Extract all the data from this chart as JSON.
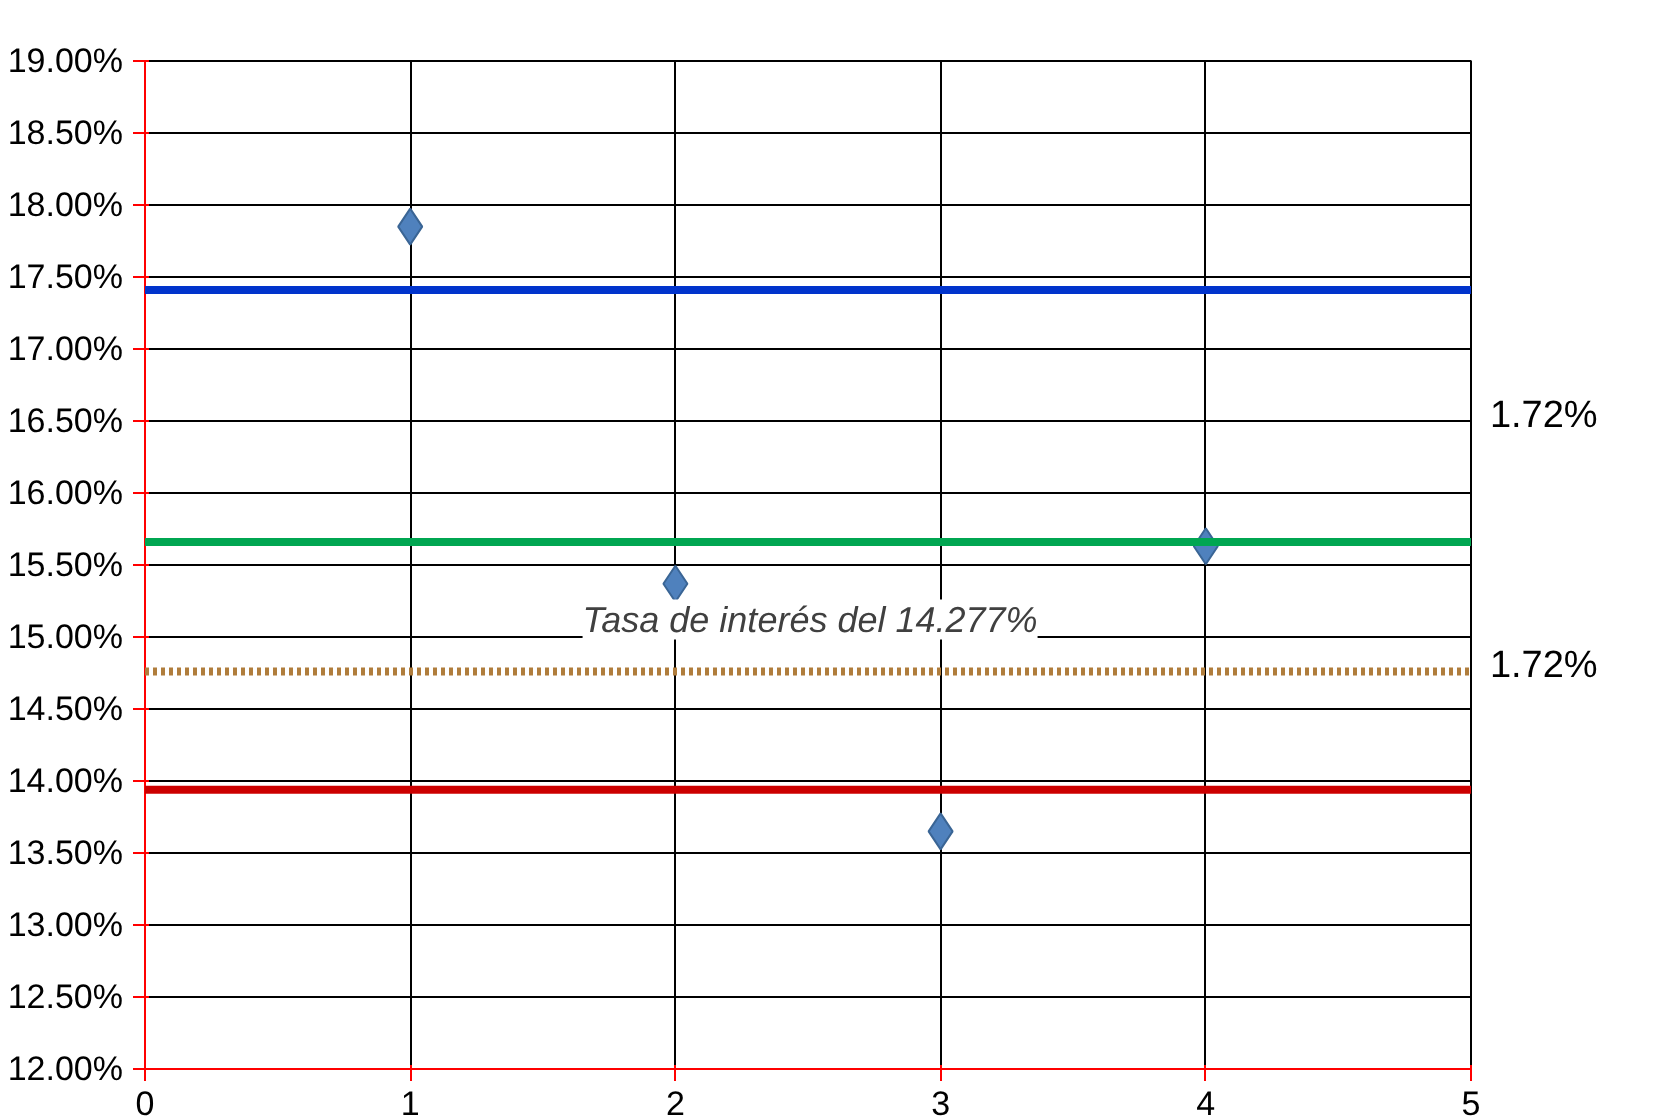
{
  "chart_data": {
    "type": "scatter",
    "x": [
      1,
      2,
      3,
      4
    ],
    "series": [
      {
        "color": "#4f81bd",
        "values": [
          17.85,
          15.37,
          13.65,
          15.63
        ]
      }
    ],
    "marker": "diamond",
    "xlim": [
      0,
      5
    ],
    "xticks": [
      0,
      1,
      2,
      3,
      4,
      5
    ],
    "ylim": [
      12,
      19
    ],
    "yticks": [
      {
        "value": 12,
        "label": "12.00%"
      },
      {
        "value": 12.5,
        "label": "12.50%"
      },
      {
        "value": 13,
        "label": "13.00%"
      },
      {
        "value": 13.5,
        "label": "13.50%"
      },
      {
        "value": 14,
        "label": "14.00%"
      },
      {
        "value": 14.5,
        "label": "14.50%"
      },
      {
        "value": 15,
        "label": "15.00%"
      },
      {
        "value": 15.5,
        "label": "15.50%"
      },
      {
        "value": 16,
        "label": "16.00%"
      },
      {
        "value": 16.5,
        "label": "16.50%"
      },
      {
        "value": 17,
        "label": "17.00%"
      },
      {
        "value": 17.5,
        "label": "17.50%"
      },
      {
        "value": 18,
        "label": "18.00%"
      },
      {
        "value": 18.5,
        "label": "18.50%"
      },
      {
        "value": 19,
        "label": "19.00%"
      }
    ],
    "grid": true,
    "ref_lines": [
      {
        "axis": "y",
        "value": 17.41,
        "color": "#0033cc",
        "line_style": "solid"
      },
      {
        "axis": "y",
        "value": 15.66,
        "color": "#00a651",
        "line_style": "solid"
      },
      {
        "axis": "y",
        "value": 14.76,
        "color": "#b07d3c",
        "line_style": "dotted",
        "label": "Tasa de interés del 14.277%"
      },
      {
        "axis": "y",
        "value": 13.94,
        "color": "#cc0000",
        "line_style": "solid"
      }
    ],
    "annotations": [
      "1.72%",
      "1.72%"
    ]
  }
}
